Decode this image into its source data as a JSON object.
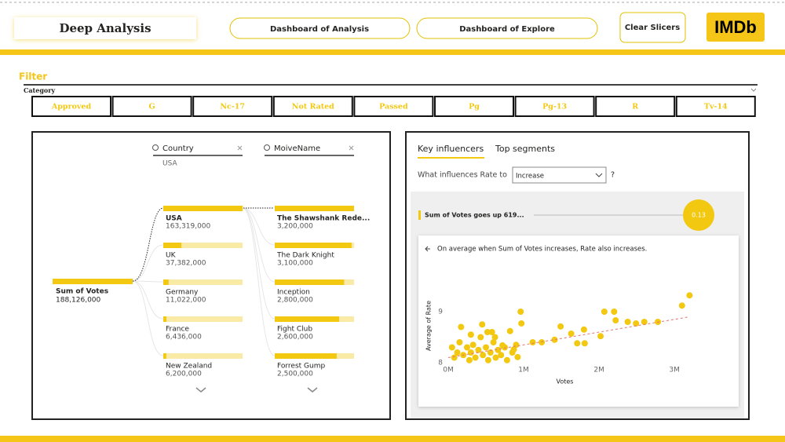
{
  "header": {
    "title": "Deep Analysis",
    "buttons": [
      "Dashboard of Analysis",
      "Dashboard of Explore"
    ],
    "clear": "Clear Slicers",
    "logo": "IMDb"
  },
  "filter": {
    "title": "Filter",
    "label": "Category",
    "items": [
      "Approved",
      "G",
      "Nc-17",
      "Not Rated",
      "Passed",
      "Pg",
      "Pg-13",
      "R",
      "Tv-14"
    ]
  },
  "decomposition": {
    "root": {
      "label": "Sum of Votes",
      "value": 188126000,
      "value_label": "188,126,000"
    },
    "levels": [
      {
        "field": "Country",
        "selected": "USA",
        "items": [
          {
            "label": "USA",
            "value": 163319000,
            "value_label": "163,319,000"
          },
          {
            "label": "UK",
            "value": 37382000,
            "value_label": "37,382,000"
          },
          {
            "label": "Germany",
            "value": 11022000,
            "value_label": "11,022,000"
          },
          {
            "label": "France",
            "value": 6436000,
            "value_label": "6,436,000"
          },
          {
            "label": "New Zealand",
            "value": 6200000,
            "value_label": "6,200,000"
          }
        ]
      },
      {
        "field": "MoiveName",
        "items": [
          {
            "label": "The Shawshank Rede...",
            "value": 3200000,
            "value_label": "3,200,000"
          },
          {
            "label": "The Dark Knight",
            "value": 3100000,
            "value_label": "3,100,000"
          },
          {
            "label": "Inception",
            "value": 2800000,
            "value_label": "2,800,000"
          },
          {
            "label": "Fight Club",
            "value": 2600000,
            "value_label": "2,600,000"
          },
          {
            "label": "Forrest Gump",
            "value": 2500000,
            "value_label": "2,500,000"
          }
        ]
      }
    ]
  },
  "influencers": {
    "tabs": [
      "Key influencers",
      "Top segments"
    ],
    "question": "What influences Rate to",
    "dropdown": "Increase",
    "help": "?",
    "factor": "Sum of Votes goes up 619...",
    "factor_value": "0.13",
    "explanation": "On average when Sum of Votes increases, Rate also increases."
  },
  "chart_data": {
    "type": "scatter",
    "x_label": "Votes",
    "y_label": "Average of Rate",
    "color": "#f2c811",
    "xlim": [
      0,
      3300000
    ],
    "ylim": [
      8,
      9.6
    ],
    "xticks": [
      {
        "value": 0,
        "label": "0M"
      },
      {
        "value": 1000000,
        "label": "1M"
      },
      {
        "value": 2000000,
        "label": "2M"
      },
      {
        "value": 3000000,
        "label": "3M"
      }
    ],
    "yticks": [
      8,
      9
    ],
    "x": [
      3200000,
      3100000,
      2780000,
      2600000,
      2490000,
      2380000,
      2220000,
      2070000,
      2200000,
      2020000,
      1800000,
      1710000,
      1810000,
      1630000,
      1490000,
      1410000,
      1240000,
      1120000,
      960000,
      970000,
      820000,
      720000,
      870000,
      920000,
      50000,
      80000,
      120000,
      150000,
      200000,
      250000,
      280000,
      300000,
      330000,
      360000,
      400000,
      430000,
      460000,
      500000,
      530000,
      560000,
      600000,
      630000,
      660000,
      700000,
      750000,
      780000,
      850000,
      900000,
      580000,
      170000,
      300000,
      450000,
      520000,
      620000
    ],
    "y": [
      9.32,
      9.12,
      8.8,
      8.8,
      8.77,
      8.8,
      8.83,
      9.0,
      9.0,
      8.52,
      8.65,
      8.38,
      8.38,
      8.57,
      8.71,
      8.45,
      8.4,
      8.4,
      9.0,
      8.77,
      8.62,
      8.34,
      8.26,
      8.11,
      8.3,
      8.1,
      8.2,
      8.4,
      8.15,
      8.3,
      8.05,
      8.2,
      8.35,
      8.1,
      8.25,
      8.5,
      8.15,
      8.3,
      8.05,
      8.2,
      8.4,
      8.1,
      8.25,
      8.15,
      8.3,
      8.05,
      8.2,
      8.35,
      8.6,
      8.7,
      8.55,
      8.75,
      8.6,
      8.5
    ],
    "trendline": {
      "x": [
        0,
        3200000
      ],
      "y": [
        8.1,
        8.9
      ],
      "color": "#e57373"
    }
  }
}
